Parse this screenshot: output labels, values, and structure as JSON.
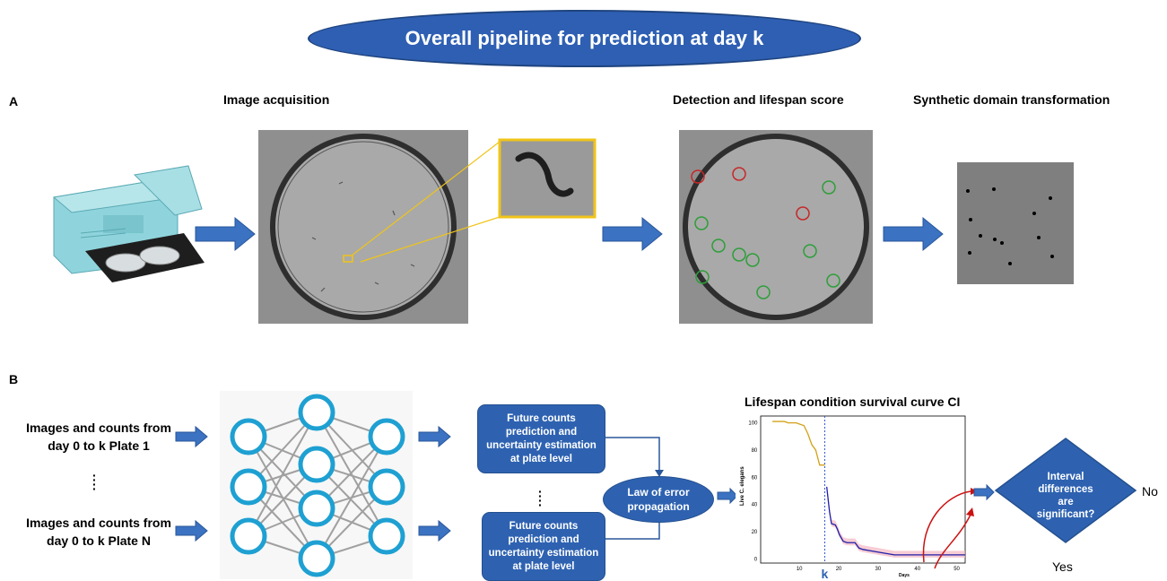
{
  "title": "Overall pipeline for prediction at day k",
  "section_a": {
    "letter": "A",
    "steps": {
      "acquisition": "Image acquisition",
      "detection": "Detection and lifespan score",
      "synthetic": "Synthetic domain transformation"
    }
  },
  "section_b": {
    "letter": "B",
    "inputs": {
      "first": "Images and counts from day 0 to k Plate 1",
      "last": "Images and counts from day 0 to k Plate N"
    },
    "prediction_box_top": "Future counts prediction and uncertainty estimation at plate level",
    "prediction_box_bottom": "Future counts prediction and uncertainty estimation at plate level",
    "law_of_error": "Law of error propagation",
    "curve_title": "Lifespan condition survival curve CI",
    "decision": {
      "question": "Interval differences are significant?",
      "no": "No",
      "yes": "Yes"
    }
  },
  "chart_data": {
    "type": "line",
    "ylabel": "Live C. elegans",
    "xlabel": "Days",
    "xlim": [
      0,
      52
    ],
    "ylim": [
      -3,
      105
    ],
    "xticks": [
      "10",
      "20",
      "30",
      "40",
      "50"
    ],
    "yticks": [
      "0",
      "20",
      "40",
      "60",
      "80",
      "100"
    ],
    "marker_label": "k",
    "marker_x": 16.3,
    "series": [
      {
        "color": "#d4a017",
        "x": [
          3,
          6,
          7,
          9,
          11,
          12,
          13,
          14,
          15,
          16,
          16.3
        ],
        "y": [
          101,
          101,
          100,
          100,
          98,
          92,
          84,
          80,
          69,
          69,
          69
        ]
      },
      {
        "color": "#1f1fa8",
        "x": [
          16.8,
          17.5,
          18,
          19,
          19.5,
          20,
          21,
          22,
          23,
          24,
          25,
          26,
          28,
          30,
          32,
          34,
          36,
          38,
          40,
          45,
          50,
          52
        ],
        "y": [
          53,
          35,
          26,
          25,
          22,
          18,
          13,
          12,
          12,
          12,
          8,
          7,
          6,
          5,
          4,
          3,
          3,
          3,
          3,
          3,
          3,
          3
        ]
      }
    ]
  }
}
